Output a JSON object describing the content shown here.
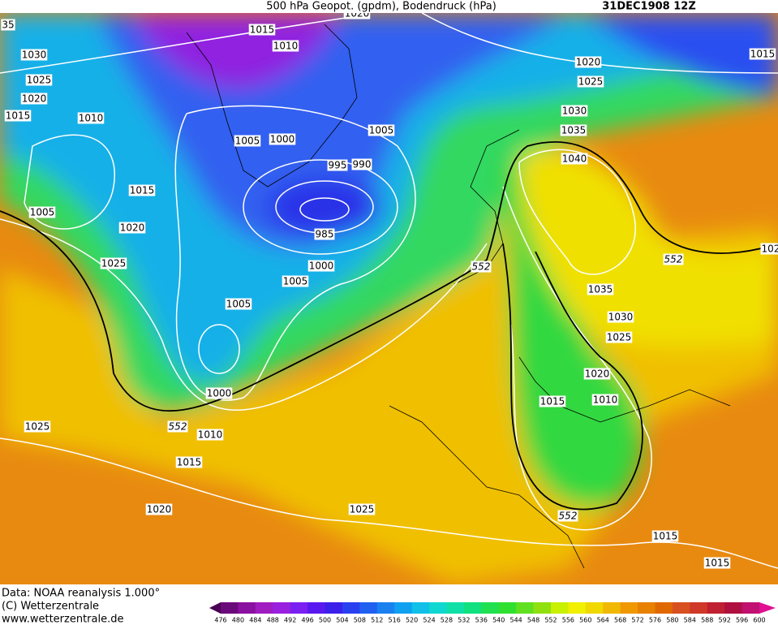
{
  "header": {
    "title": "500 hPa Geopot. (gpdm), Bodendruck (hPa)",
    "date": "31DEC1908 12Z"
  },
  "isobar_labels": [
    "35",
    1015,
    1010,
    1020,
    1030,
    1025,
    1020,
    1015,
    1010,
    1005,
    1000,
    1005,
    995,
    990,
    1015,
    1005,
    1020,
    985,
    1025,
    1000,
    1005,
    1005,
    1000,
    1010,
    1015,
    1025,
    1020,
    1025,
    1020,
    1025,
    1030,
    1035,
    1040,
    1015,
    1035,
    1030,
    1025,
    1020,
    1010,
    1015,
    1015,
    1015,
    "102"
  ],
  "contour_labels": [
    552,
    552,
    552,
    552
  ],
  "footer": [
    "Data: NOAA reanalysis 1.000°",
    "(C) Wetterzentrale",
    "www.wetterzentrale.de"
  ],
  "colorbar": {
    "labels": [
      476,
      480,
      484,
      488,
      492,
      496,
      500,
      504,
      508,
      512,
      516,
      520,
      524,
      528,
      532,
      536,
      540,
      544,
      548,
      552,
      556,
      560,
      564,
      568,
      572,
      576,
      580,
      584,
      588,
      592,
      596,
      600
    ],
    "colors": [
      "#4a0052",
      "#6a0a7a",
      "#8a10a0",
      "#a01cc0",
      "#9a20e0",
      "#7a20f0",
      "#5a18f0",
      "#3a20e8",
      "#2a40f0",
      "#2060f0",
      "#1a80f0",
      "#10a0f0",
      "#10c0e8",
      "#10d8d0",
      "#10e0a8",
      "#10e080",
      "#20e050",
      "#30e030",
      "#60e020",
      "#90e010",
      "#c8f000",
      "#f0f000",
      "#f0d800",
      "#f0b800",
      "#f09800",
      "#e88000",
      "#e06800",
      "#d85020",
      "#d03828",
      "#c02030",
      "#b01040",
      "#c01070",
      "#e01090"
    ]
  }
}
